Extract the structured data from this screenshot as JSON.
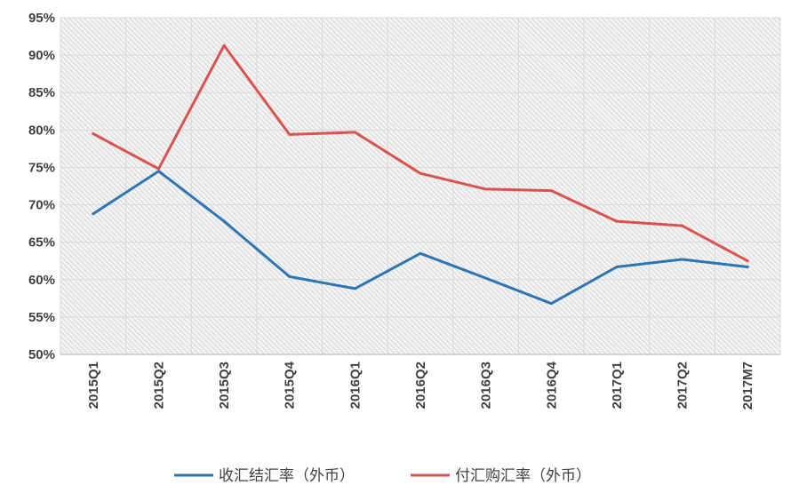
{
  "chart_data": {
    "type": "line",
    "title": "",
    "xlabel": "",
    "ylabel": "",
    "ylim": [
      50,
      95
    ],
    "yticks": [
      50,
      55,
      60,
      65,
      70,
      75,
      80,
      85,
      90,
      95
    ],
    "ytick_labels": [
      "50%",
      "55%",
      "60%",
      "65%",
      "70%",
      "75%",
      "80%",
      "85%",
      "90%",
      "95%"
    ],
    "grid": true,
    "legend_position": "bottom",
    "categories": [
      "2015Q1",
      "2015Q2",
      "2015Q3",
      "2015Q4",
      "2016Q1",
      "2016Q2",
      "2016Q3",
      "2016Q4",
      "2017Q1",
      "2017Q2",
      "2017M7"
    ],
    "series": [
      {
        "name": "收汇结汇率（外币）",
        "color": "#2e75b6",
        "values": [
          68.8,
          74.5,
          67.8,
          60.4,
          58.8,
          63.5,
          60.2,
          56.8,
          61.7,
          62.7,
          61.7
        ]
      },
      {
        "name": "付汇购汇率（外币）",
        "color": "#d9534f",
        "values": [
          79.5,
          74.8,
          91.3,
          79.4,
          79.7,
          74.2,
          72.1,
          71.9,
          67.8,
          67.2,
          62.5
        ]
      }
    ]
  }
}
